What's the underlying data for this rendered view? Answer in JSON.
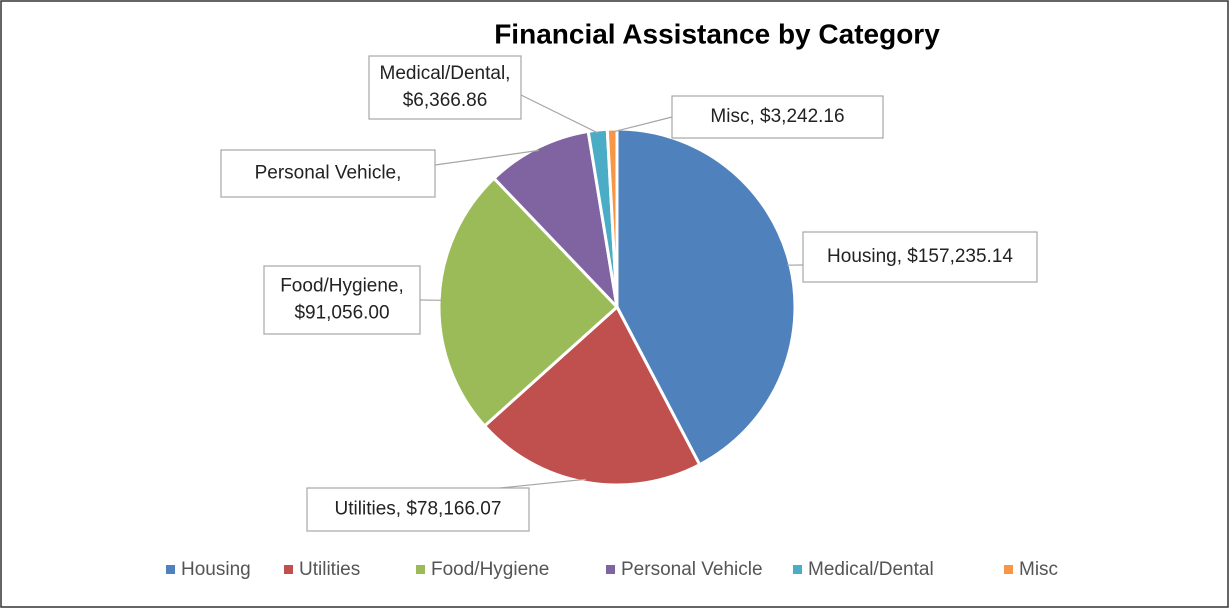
{
  "chart_data": {
    "type": "pie",
    "title": "Financial Assistance by Category",
    "categories": [
      "Housing",
      "Utilities",
      "Food/Hygiene",
      "Personal Vehicle",
      "Medical/Dental",
      "Misc"
    ],
    "values": [
      157235.14,
      78166.07,
      91056.0,
      35500,
      6366.86,
      3242.16
    ],
    "value_labels": [
      [
        "Housing,  $157,235.14"
      ],
      [
        "Utilities,  $78,166.07"
      ],
      [
        "Food/Hygiene,",
        "$91,056.00"
      ],
      [
        "Personal Vehicle,"
      ],
      [
        "Medical/Dental,",
        "$6,366.86"
      ],
      [
        "Misc,  $3,242.16"
      ]
    ],
    "colors": [
      "#4f81bd",
      "#c0504d",
      "#9bbb59",
      "#8064a2",
      "#4bacc6",
      "#f79646"
    ],
    "legend": "bottom"
  }
}
